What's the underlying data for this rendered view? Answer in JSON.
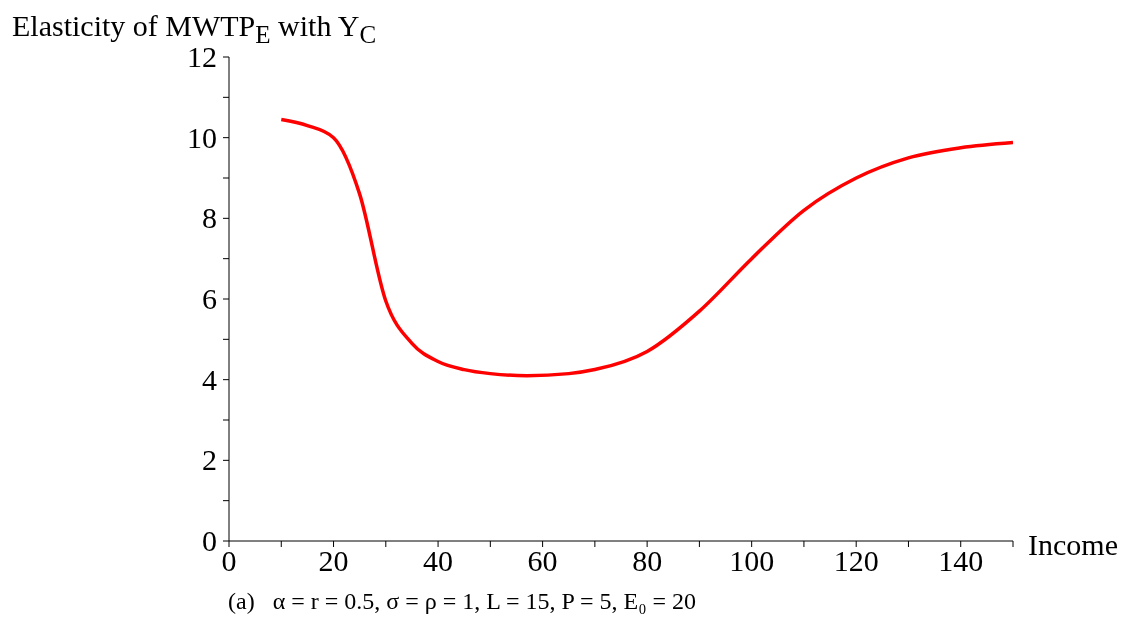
{
  "chart_data": {
    "type": "line",
    "ylabel": "Elasticity of MWTP$_{E}$ with Y$_{C}$",
    "xlabel": "Income",
    "annotations": [
      "(a)   α = r = 0.5, σ = ρ = 1, L = 15, P = 5, E₀ = 20"
    ],
    "x": [
      10,
      15,
      20,
      25,
      30,
      35,
      40,
      45,
      50,
      57,
      65,
      70,
      80,
      90,
      100,
      110,
      120,
      130,
      140,
      150
    ],
    "series": [
      {
        "color": "#ff0000",
        "values": [
          10.45,
          10.3,
          10.0,
          8.6,
          5.95,
          4.9,
          4.45,
          4.25,
          4.15,
          4.1,
          4.15,
          4.25,
          4.7,
          5.7,
          7.0,
          8.2,
          9.0,
          9.5,
          9.75,
          9.88
        ]
      }
    ],
    "xlim": [
      0,
      150
    ],
    "xticks": [
      0,
      {
        "value": 10,
        "label": null
      },
      20,
      {
        "value": 30,
        "label": null
      },
      40,
      {
        "value": 50,
        "label": null
      },
      60,
      {
        "value": 70,
        "label": null
      },
      80,
      {
        "value": 90,
        "label": null
      },
      100,
      {
        "value": 110,
        "label": null
      },
      120,
      {
        "value": 130,
        "label": null
      },
      140,
      {
        "value": 150,
        "label": null
      }
    ],
    "ylim": [
      0,
      12
    ],
    "yticks": [
      0,
      {
        "value": 1,
        "label": null
      },
      2,
      {
        "value": 3,
        "label": null
      },
      4,
      {
        "value": 5,
        "label": null
      },
      6,
      {
        "value": 7,
        "label": null
      },
      8,
      {
        "value": 9,
        "label": null
      },
      10,
      {
        "value": 11,
        "label": null
      },
      12
    ],
    "grid": false,
    "legend": false,
    "marker": "none",
    "line_style": "solid"
  }
}
